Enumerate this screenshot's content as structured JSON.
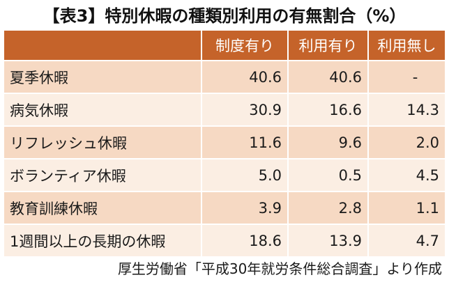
{
  "title": "【表3】特別休暇の種類別利用の有無割合（%）",
  "table": {
    "header": {
      "label": "",
      "col1": "制度有り",
      "col2": "利用有り",
      "col3": "利用無し"
    },
    "rows": [
      {
        "label": "夏季休暇",
        "col1": "40.6",
        "col2": "40.6",
        "col3": "-"
      },
      {
        "label": "病気休暇",
        "col1": "30.9",
        "col2": "16.6",
        "col3": "14.3"
      },
      {
        "label": "リフレッシュ休暇",
        "col1": "11.6",
        "col2": "9.6",
        "col3": "2.0"
      },
      {
        "label": "ボランティア休暇",
        "col1": "5.0",
        "col2": "0.5",
        "col3": "4.5"
      },
      {
        "label": "教育訓練休暇",
        "col1": "3.9",
        "col2": "2.8",
        "col3": "1.1"
      },
      {
        "label": "1週間以上の長期の休暇",
        "col1": "18.6",
        "col2": "13.9",
        "col3": "4.7"
      }
    ]
  },
  "source": "厚生労働省「平成30年就労条件総合調査」より作成",
  "colors": {
    "header_bg": "#c5632a",
    "row_odd_bg": "#f6d9c3",
    "row_even_bg": "#fbeee3"
  }
}
